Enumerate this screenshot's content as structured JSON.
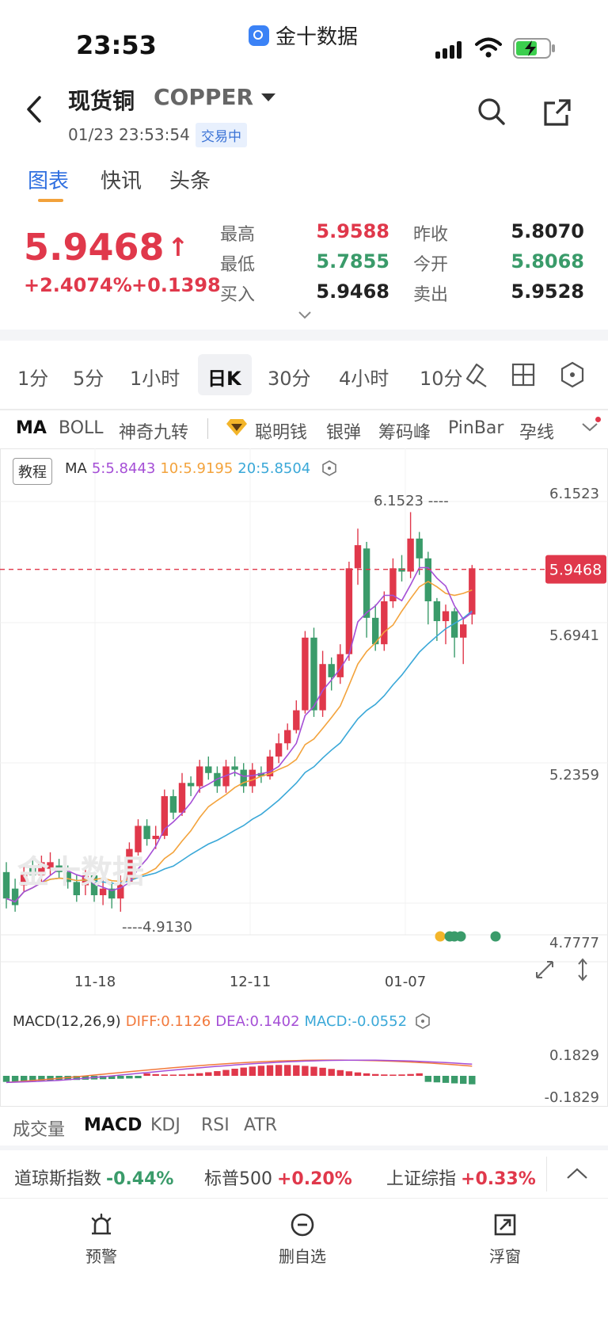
{
  "status_bar": {
    "time": "23:53",
    "app_name": "金十数据"
  },
  "header": {
    "title_cn": "现货铜",
    "title_en": "COPPER",
    "datetime": "01/23 23:53:54",
    "status_badge": "交易中"
  },
  "tabs": [
    {
      "label": "图表"
    },
    {
      "label": "快讯"
    },
    {
      "label": "头条"
    }
  ],
  "quote": {
    "price": "5.9468",
    "arrow": "↑",
    "change_pct": "+2.4074%",
    "change": "+0.1398",
    "rows": [
      {
        "label1": "最高",
        "value1": "5.9588",
        "label2": "昨收",
        "value2": "5.8070"
      },
      {
        "label1": "最低",
        "value1": "5.7855",
        "label2": "今开",
        "value2": "5.8068"
      },
      {
        "label1": "买入",
        "value1": "5.9468",
        "label2": "卖出",
        "value2": "5.9528"
      }
    ],
    "colors": {
      "up": "#e0384b",
      "down": "#3a9b6a",
      "neutral": "#222222"
    }
  },
  "periods": [
    "1分",
    "5分",
    "1小时",
    "日K",
    "30分",
    "4小时",
    "10分"
  ],
  "indicators": [
    "MA",
    "BOLL",
    "神奇九转",
    "聪明钱",
    "银弹",
    "筹码峰",
    "PinBar",
    "孕线"
  ],
  "chart": {
    "tutorial_label": "教程",
    "ma_label": "MA",
    "ma5": "5:5.8443",
    "ma10": "10:5.9195",
    "ma20": "20:5.8504",
    "y_labels": [
      "6.1523",
      "5.6941",
      "5.2359",
      "4.7777"
    ],
    "current_price_tag": "5.9468",
    "high_annotation": "6.1523",
    "low_annotation": "4.9130",
    "x_labels": [
      "11-18",
      "12-11",
      "01-07"
    ],
    "watermark": "金十数据",
    "colors": {
      "up": "#e0384b",
      "down": "#3a9b6a",
      "ma5": "#a54fd6",
      "ma10": "#f3a33c",
      "ma20": "#3aa8d8"
    }
  },
  "macd": {
    "title": "MACD(12,26,9)",
    "diff": "DIFF:0.1126",
    "dea": "DEA:0.1402",
    "macd": "MACD:-0.0552",
    "y_labels": [
      "0.1829",
      "-0.1829"
    ]
  },
  "bottom_tabs": [
    "成交量",
    "MACD",
    "KDJ",
    "RSI",
    "ATR"
  ],
  "ticker": [
    {
      "name": "道琼斯指数",
      "value": "-0.44%",
      "color": "#3a9b6a"
    },
    {
      "name": "标普500",
      "value": "+0.20%",
      "color": "#e0384b"
    },
    {
      "name": "上证综指",
      "value": "+0.33%",
      "color": "#e0384b"
    }
  ],
  "bottom_bar": [
    {
      "label": "预警",
      "icon": "alarm-icon"
    },
    {
      "label": "删自选",
      "icon": "minus-circle-icon"
    },
    {
      "label": "浮窗",
      "icon": "float-window-icon"
    }
  ]
}
